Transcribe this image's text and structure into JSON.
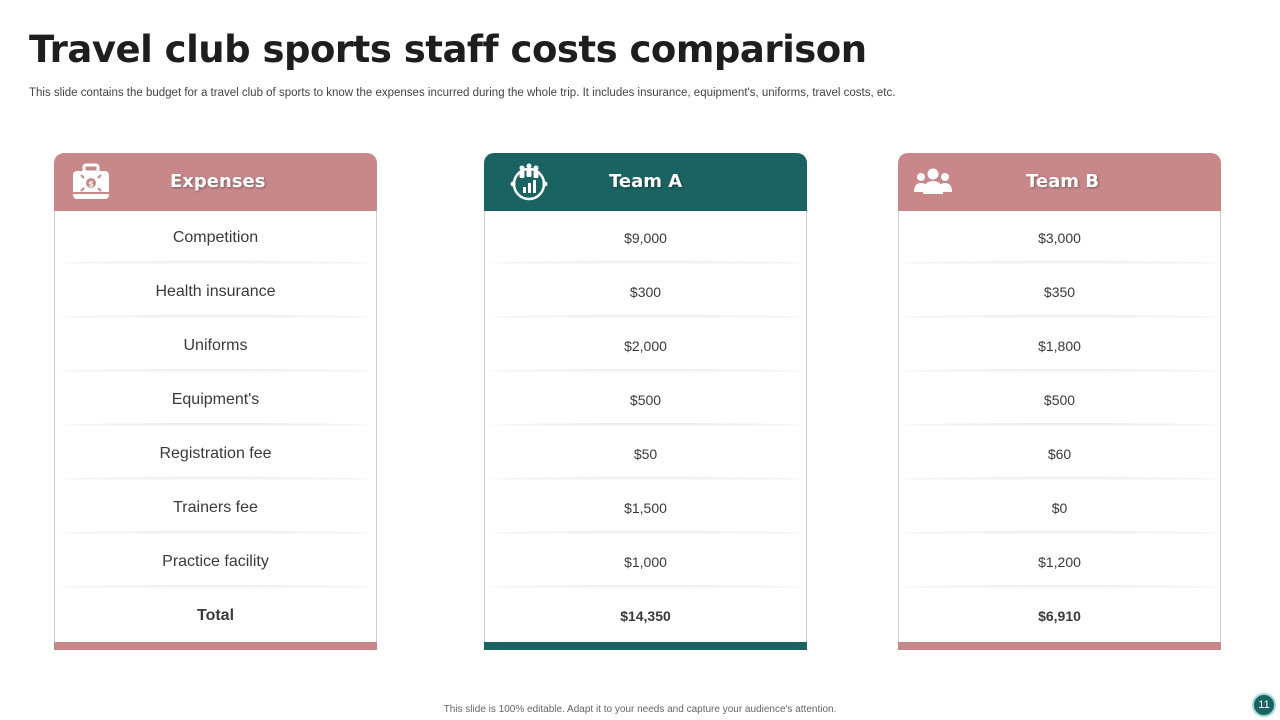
{
  "title": "Travel club sports staff costs comparison",
  "subtitle": "This slide contains the budget for a travel  club of sports to know the expenses incurred during the whole trip. It includes insurance, equipment's, uniforms, travel costs, etc.",
  "colors": {
    "pink": "#c8888a",
    "teal": "#1b6363"
  },
  "cards": {
    "expenses": {
      "header": "Expenses",
      "icon": "briefcase-money-icon",
      "rows": [
        "Competition",
        "Health insurance",
        "Uniforms",
        "Equipment's",
        "Registration fee",
        "Trainers fee",
        "Practice facility",
        "Total"
      ]
    },
    "team_a": {
      "header": "Team A",
      "icon": "team-chart-icon",
      "rows": [
        "$9,000",
        "$300",
        "$2,000",
        "$500",
        "$50",
        "$1,500",
        "$1,000",
        "$14,350"
      ]
    },
    "team_b": {
      "header": "Team B",
      "icon": "group-icon",
      "rows": [
        "$3,000",
        "$350",
        "$1,800",
        "$500",
        "$60",
        "$0",
        "$1,200",
        "$6,910"
      ]
    }
  },
  "footnote": "This slide is 100% editable.  Adapt it to your needs and capture your audience's attention.",
  "page_number": "11"
}
